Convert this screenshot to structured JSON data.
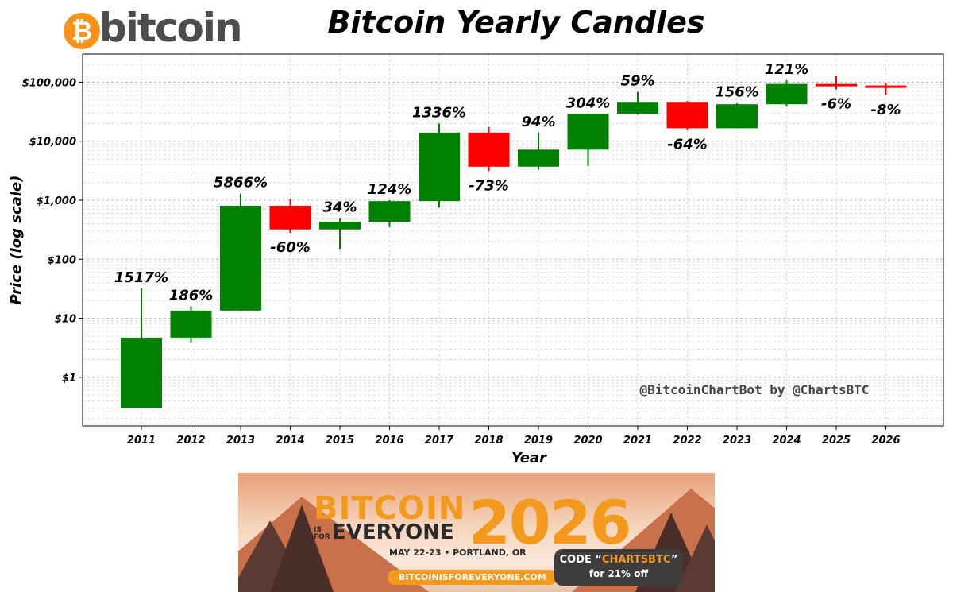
{
  "header": {
    "logo_glyph": "₿",
    "logo_text": "bitcoin",
    "title": "Bitcoin Yearly Candles"
  },
  "chart_data": {
    "type": "candlestick",
    "title": "Bitcoin Yearly Candles",
    "xlabel": "Year",
    "ylabel": "Price (log scale)",
    "yscale": "log",
    "ylim": [
      0.15,
      300000
    ],
    "yticks": [
      1,
      10,
      100,
      1000,
      10000,
      100000
    ],
    "ytick_labels": [
      "$1",
      "$10",
      "$100",
      "$1,000",
      "$10,000",
      "$100,000"
    ],
    "grid": true,
    "watermark": "@BitcoinChartBot by @ChartsBTC",
    "colors": {
      "up": "#008000",
      "down": "#ff0000"
    },
    "candles": [
      {
        "year": "2011",
        "open": 0.3,
        "high": 32,
        "low": 0.3,
        "close": 4.7,
        "change": "1517%"
      },
      {
        "year": "2012",
        "open": 4.7,
        "high": 16,
        "low": 3.8,
        "close": 13.5,
        "change": "186%"
      },
      {
        "year": "2013",
        "open": 13.5,
        "high": 1300,
        "low": 13.3,
        "close": 805,
        "change": "5866%"
      },
      {
        "year": "2014",
        "open": 805,
        "high": 1050,
        "low": 280,
        "close": 320,
        "change": "-60%"
      },
      {
        "year": "2015",
        "open": 320,
        "high": 500,
        "low": 150,
        "close": 430,
        "change": "34%"
      },
      {
        "year": "2016",
        "open": 430,
        "high": 1000,
        "low": 350,
        "close": 964,
        "change": "124%"
      },
      {
        "year": "2017",
        "open": 964,
        "high": 20000,
        "low": 750,
        "close": 14000,
        "change": "1336%"
      },
      {
        "year": "2018",
        "open": 14000,
        "high": 17500,
        "low": 3100,
        "close": 3700,
        "change": "-73%"
      },
      {
        "year": "2019",
        "open": 3700,
        "high": 14000,
        "low": 3300,
        "close": 7200,
        "change": "94%"
      },
      {
        "year": "2020",
        "open": 7200,
        "high": 29000,
        "low": 3800,
        "close": 29000,
        "change": "304%"
      },
      {
        "year": "2021",
        "open": 29000,
        "high": 69000,
        "low": 28000,
        "close": 46300,
        "change": "59%"
      },
      {
        "year": "2022",
        "open": 46300,
        "high": 48000,
        "low": 15500,
        "close": 16600,
        "change": "-64%"
      },
      {
        "year": "2023",
        "open": 16600,
        "high": 44700,
        "low": 16500,
        "close": 42300,
        "change": "156%"
      },
      {
        "year": "2024",
        "open": 42300,
        "high": 108000,
        "low": 38500,
        "close": 93400,
        "change": "121%"
      },
      {
        "year": "2025",
        "open": 93400,
        "high": 126000,
        "low": 75000,
        "close": 87800,
        "change": "-6%"
      },
      {
        "year": "2026",
        "open": 87800,
        "high": 97000,
        "low": 60000,
        "close": 80800,
        "change": "-8%"
      }
    ]
  },
  "banner": {
    "line1": "BITCOIN",
    "is_for": "IS FOR",
    "line2": "EVERYONE",
    "year": "2026",
    "date_location": "MAY 22-23 • PORTLAND, OR",
    "url": "BITCOINISFOREVERYONE.COM",
    "code_prefix": "CODE “",
    "code": "CHARTSBTC",
    "code_suffix": "”",
    "discount": "for 21% off"
  }
}
